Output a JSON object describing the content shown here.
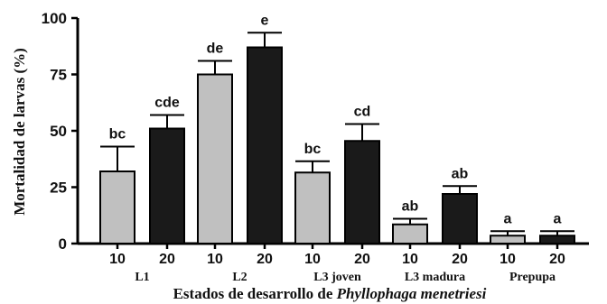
{
  "chart_data": {
    "type": "bar",
    "xlabel_prefix": "Estados de desarrollo de ",
    "xlabel_species": "Phyllophaga menetriesi",
    "ylabel": "Mortalidad de larvas (%)",
    "ylim": [
      0,
      100
    ],
    "yticks": [
      "0",
      "25",
      "50",
      "75",
      "100"
    ],
    "ytick_values": [
      0,
      25,
      50,
      75,
      100
    ],
    "groups": [
      {
        "name": "L1",
        "bars": [
          {
            "label": "10",
            "value": 32,
            "error": 11,
            "letters": "bc",
            "color": "#c0c0c0"
          },
          {
            "label": "20",
            "value": 51,
            "error": 6,
            "letters": "cde",
            "color": "#1a1a1a"
          }
        ]
      },
      {
        "name": "L2",
        "bars": [
          {
            "label": "10",
            "value": 75,
            "error": 6,
            "letters": "de",
            "color": "#c0c0c0"
          },
          {
            "label": "20",
            "value": 87,
            "error": 6.5,
            "letters": "e",
            "color": "#1a1a1a"
          }
        ]
      },
      {
        "name": "L3 joven",
        "bars": [
          {
            "label": "10",
            "value": 31.5,
            "error": 5,
            "letters": "bc",
            "color": "#c0c0c0"
          },
          {
            "label": "20",
            "value": 45.5,
            "error": 7.5,
            "letters": "cd",
            "color": "#1a1a1a"
          }
        ]
      },
      {
        "name": "L3 madura",
        "bars": [
          {
            "label": "10",
            "value": 8.5,
            "error": 2.5,
            "letters": "ab",
            "color": "#c0c0c0"
          },
          {
            "label": "20",
            "value": 22,
            "error": 3.5,
            "letters": "ab",
            "color": "#1a1a1a"
          }
        ]
      },
      {
        "name": "Prepupa",
        "bars": [
          {
            "label": "10",
            "value": 3.5,
            "error": 2,
            "letters": "a",
            "color": "#c0c0c0"
          },
          {
            "label": "20",
            "value": 3.5,
            "error": 2,
            "letters": "a",
            "color": "#1a1a1a"
          }
        ]
      }
    ]
  }
}
